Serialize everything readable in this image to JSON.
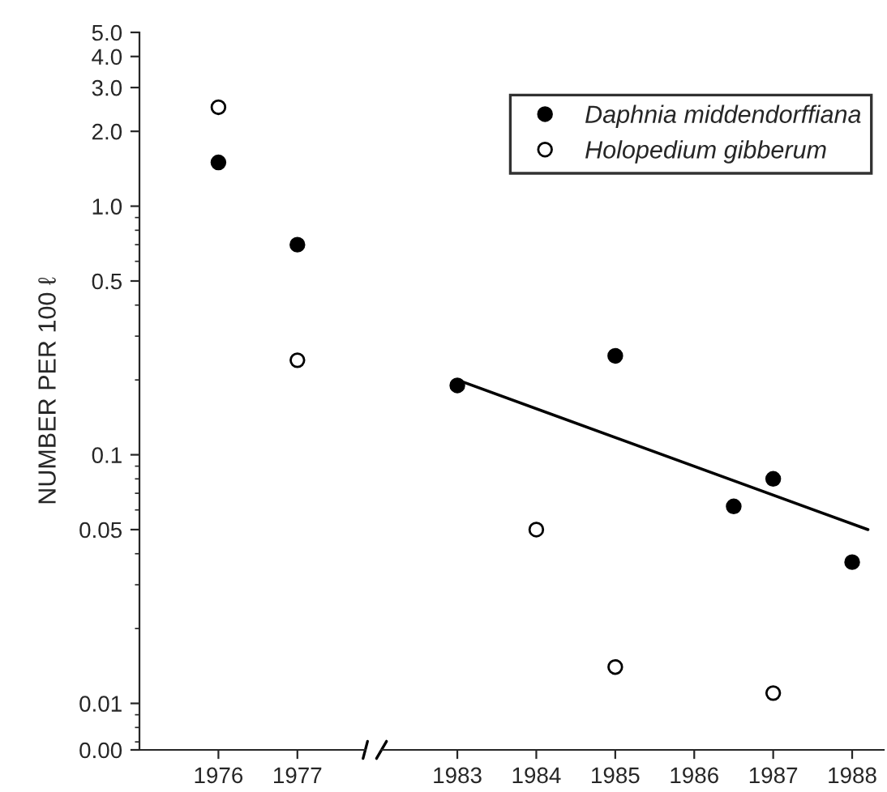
{
  "chart_data": [
    {
      "type": "scatter",
      "ylabel": "NUMBER PER 100 ℓ",
      "log": true,
      "marker": "circle",
      "xlim": [
        1975,
        1977.86
      ],
      "xticks": [
        1976,
        1977
      ],
      "ylim": [
        0,
        5
      ],
      "yticks": [
        {
          "value": 0,
          "label": "0.00"
        },
        0.01,
        0.05,
        0.1,
        0.5,
        {
          "value": 1,
          "label": "1.0"
        },
        {
          "value": 2,
          "label": "2.0"
        },
        {
          "value": 3,
          "label": "3.0"
        },
        {
          "value": 4,
          "label": "4.0"
        },
        {
          "value": 5,
          "label": "5.0"
        }
      ],
      "series": [
        {
          "color": "#000000",
          "x": [
            1976,
            1977
          ],
          "values": [
            1.5,
            0.7
          ]
        },
        {
          "color": "#ffffff",
          "x": [
            1976,
            1977
          ],
          "values": [
            2.5,
            0.24
          ]
        }
      ]
    },
    {
      "type": "scatter",
      "log": true,
      "legend": "top right",
      "marker": "circle",
      "tick_labels": "x",
      "xlim": [
        1982.04,
        1988.4
      ],
      "xticks": [
        1983,
        1984,
        1985,
        1986,
        1987,
        1988
      ],
      "ylim": [
        0,
        5
      ],
      "series": [
        {
          "name": "Daphnia middendorffiana",
          "color": "#000000",
          "x": [
            1983,
            1985,
            1986.5,
            1987,
            1988
          ],
          "values": [
            0.19,
            0.25,
            0.062,
            0.08,
            0.037
          ]
        },
        {
          "name": "Holopedium gibberum",
          "color": "#ffffff",
          "x": [
            1984,
            1985,
            1987
          ],
          "values": [
            0.05,
            0.014,
            0.011
          ]
        },
        {
          "type": "line",
          "marker": "none",
          "color": "#000000",
          "x": [
            1983,
            1988.2
          ],
          "values": [
            0.2,
            0.05
          ]
        }
      ]
    }
  ]
}
